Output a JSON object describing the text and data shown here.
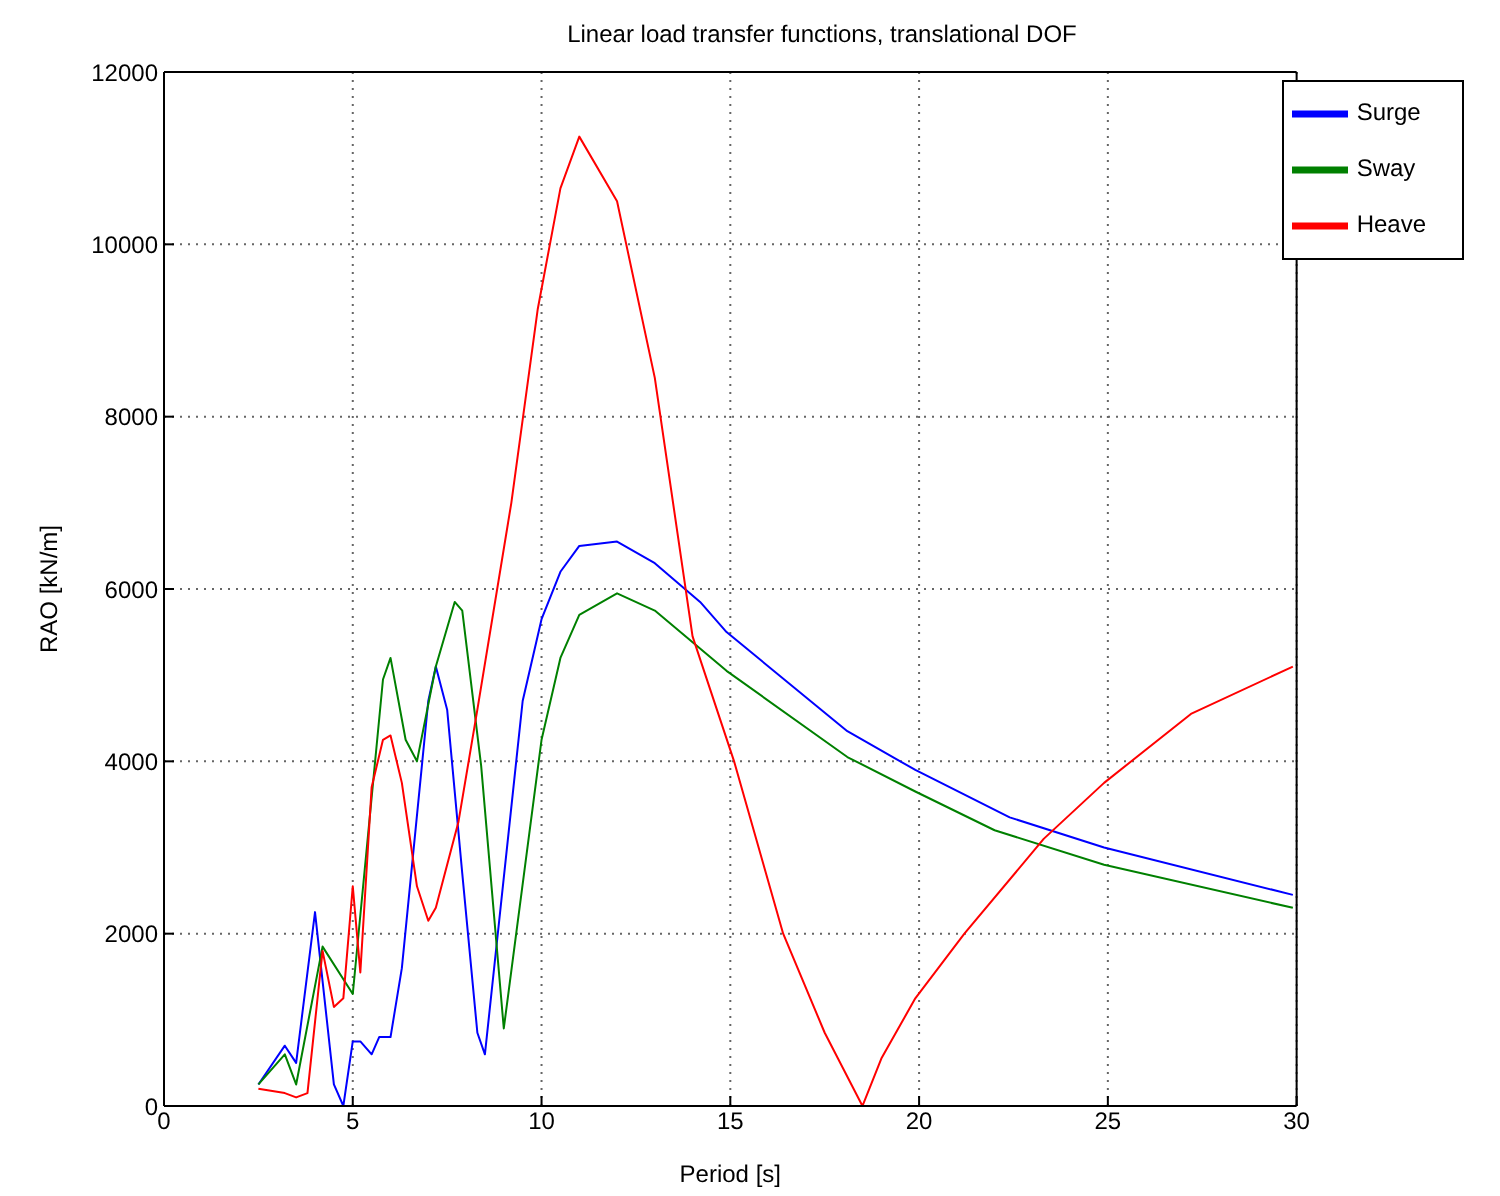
{
  "chart_data": {
    "type": "line",
    "title": "Linear load transfer functions, translational DOF",
    "xlabel": "Period [s]",
    "ylabel": "RAO [kN/m]",
    "xlim": [
      0,
      30
    ],
    "xticks": [
      0,
      5,
      10,
      15,
      20,
      25,
      30
    ],
    "ylim": [
      0,
      12000
    ],
    "yticks": [
      0,
      2000,
      4000,
      6000,
      8000,
      10000,
      12000
    ],
    "grid": true,
    "legend": "top right",
    "marker": "none",
    "line_style": "solid",
    "series": [
      {
        "name": "Surge",
        "color": "#0000ff",
        "x": [
          2.5,
          3.2,
          3.5,
          4,
          4.5,
          4.75,
          5,
          5.2,
          5.5,
          5.7,
          6,
          6.3,
          7,
          7.2,
          7.5,
          7.9,
          8.3,
          8.5,
          9.5,
          10,
          10.5,
          11,
          12,
          13,
          14.2,
          14.9,
          18.1,
          19.9,
          22.4,
          24.9,
          29.9
        ],
        "values": [
          250,
          700,
          500,
          2250,
          250,
          0,
          750,
          750,
          600,
          800,
          800,
          1600,
          4700,
          5100,
          4600,
          2700,
          850,
          600,
          4700,
          5650,
          6200,
          6500,
          6550,
          6300,
          5850,
          5500,
          4350,
          3900,
          3350,
          3000,
          2450
        ]
      },
      {
        "name": "Sway",
        "color": "#008000",
        "x": [
          2.5,
          3.2,
          3.5,
          4.2,
          5,
          5.8,
          6,
          6.4,
          6.7,
          7.2,
          7.7,
          7.9,
          8.4,
          9,
          10,
          10.5,
          11,
          12,
          13,
          14.9,
          18.1,
          19.9,
          22,
          24.9,
          29.9
        ],
        "values": [
          250,
          600,
          250,
          1850,
          1300,
          4950,
          5200,
          4250,
          4000,
          5100,
          5850,
          5750,
          3950,
          900,
          4250,
          5200,
          5700,
          5950,
          5750,
          5050,
          4050,
          3650,
          3200,
          2800,
          2300
        ]
      },
      {
        "name": "Heave",
        "color": "#ff0000",
        "x": [
          2.5,
          3.2,
          3.5,
          3.8,
          4.2,
          4.5,
          4.75,
          5,
          5.2,
          5.5,
          5.8,
          6,
          6.3,
          6.7,
          7,
          7.2,
          7.8,
          8.3,
          9.2,
          9.9,
          10.5,
          11,
          12,
          13,
          14,
          15.1,
          16.4,
          17.5,
          18.5,
          19,
          19.9,
          21.2,
          23.3,
          24.9,
          27.2,
          29.9
        ],
        "values": [
          200,
          150,
          100,
          150,
          1800,
          1150,
          1250,
          2550,
          1550,
          3700,
          4250,
          4300,
          3750,
          2550,
          2150,
          2300,
          3300,
          4600,
          7000,
          9250,
          10650,
          11250,
          10500,
          8450,
          5450,
          4000,
          2000,
          850,
          0,
          550,
          1250,
          2000,
          3100,
          3750,
          4550,
          5100
        ]
      }
    ]
  }
}
